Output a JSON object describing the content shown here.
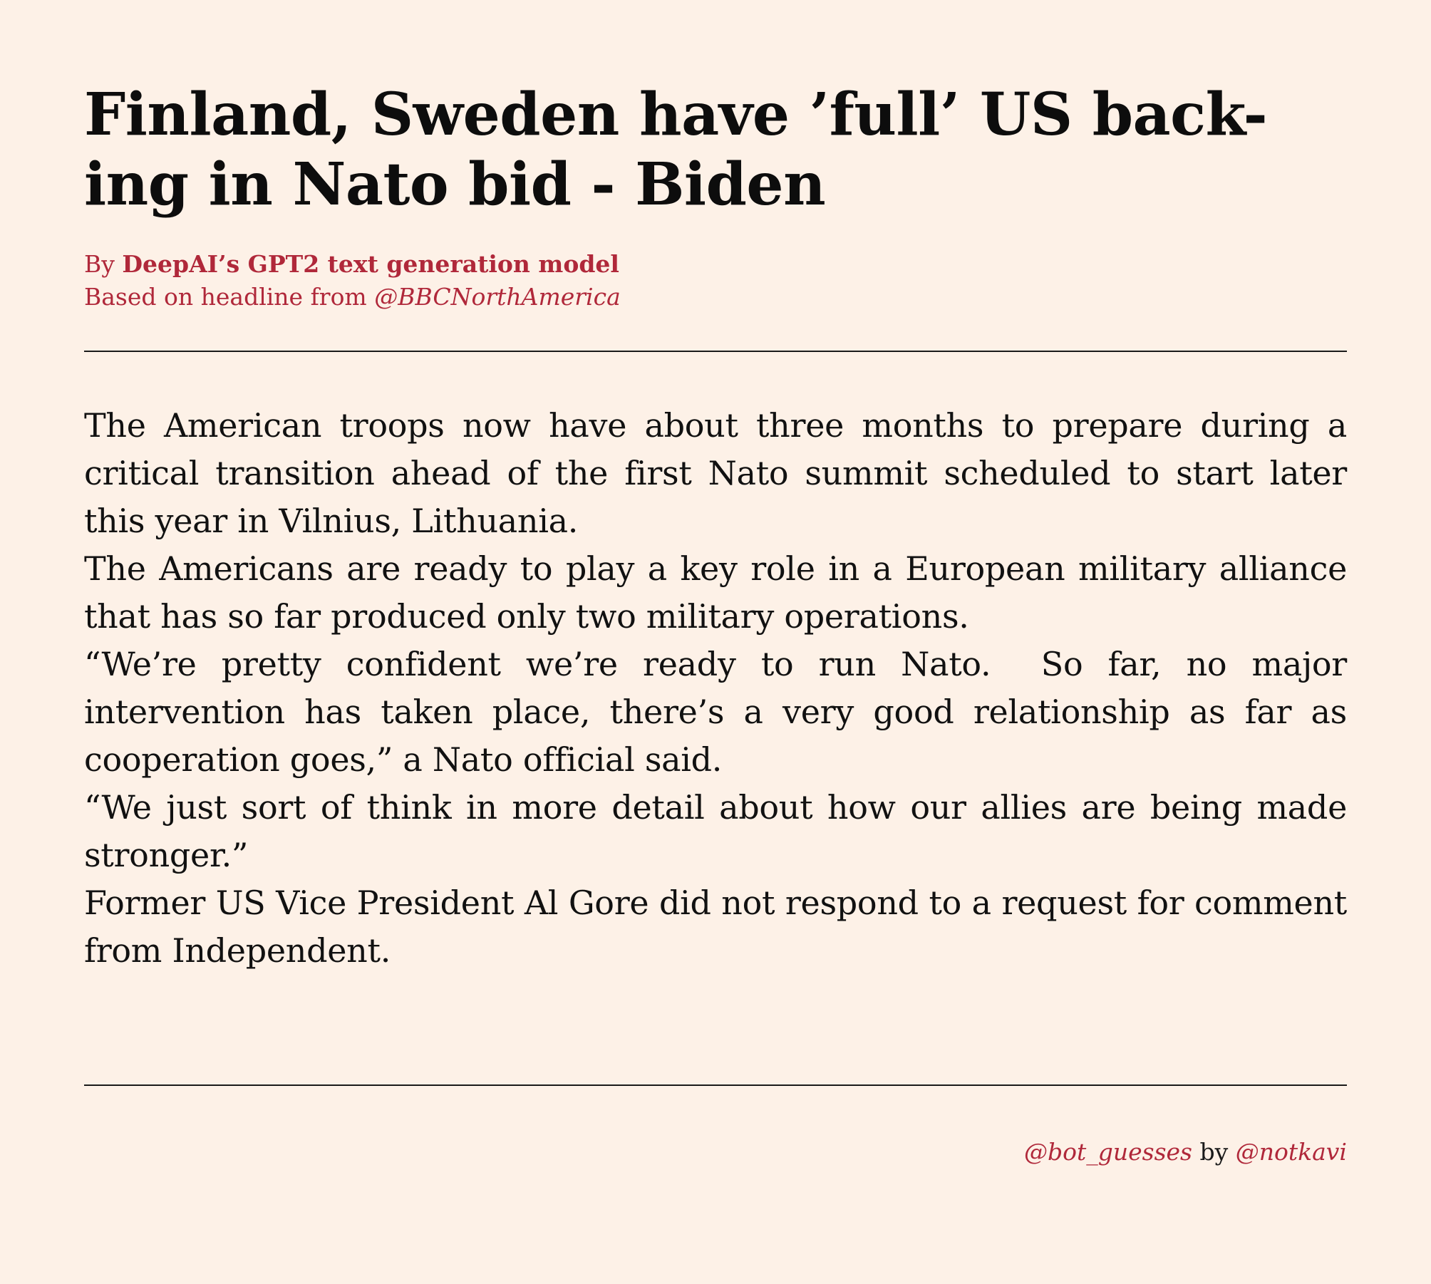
{
  "article": {
    "headline": "Finland, Sweden have ’full’ US back-ing in Nato bid - Biden",
    "byline_prefix": "By ",
    "author": "DeepAI’s GPT2 text generation model",
    "based_on_prefix": "Based on headline from ",
    "source_handle": "@BBCNorthAmerica",
    "paragraphs": [
      "The American troops now have about three months to prepare during a critical transition ahead of the first Nato summit scheduled to start later this year in Vilnius, Lithuania.",
      "The Americans are ready to play a key role in a European military alliance that has so far produced only two military operations.",
      "“We’re pretty confident we’re ready to run Nato.  So far, no major intervention has taken place, there’s a very good relationship as far as cooperation goes,” a Nato official said.",
      "“We just sort of think in more detail about how our allies are being made stronger.”",
      "Former US Vice President Al Gore did not respond to a request for comment from Independent."
    ]
  },
  "footer": {
    "bot_handle": "@bot_guesses",
    "by_text": " by ",
    "creator_handle": "@notkavi"
  },
  "colors": {
    "background": "#fdf1e7",
    "accent": "#b0283a",
    "text": "#111111"
  }
}
